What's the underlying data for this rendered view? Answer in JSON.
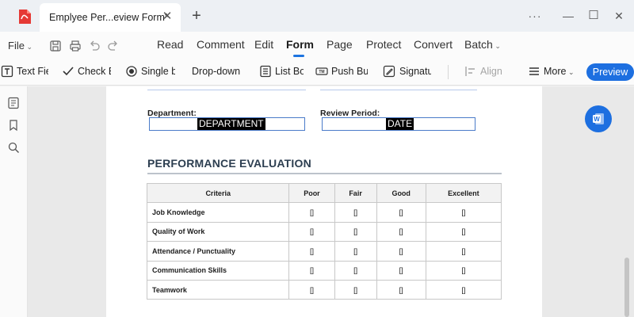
{
  "window": {
    "tab_title": "Emplyee Per...eview Form*",
    "tab_close_glyph": "✕",
    "new_tab_glyph": "+",
    "more_glyph": "···",
    "minimize_glyph": "—",
    "maximize_glyph": "☐",
    "close_glyph": "✕"
  },
  "menubar": {
    "file_label": "File",
    "items": [
      "Read",
      "Comment",
      "Edit",
      "Form",
      "Page",
      "Protect",
      "Convert",
      "Batch"
    ],
    "active_item": "Form"
  },
  "toolbar": {
    "text_field": "Text Fiel",
    "check_box": "Check Bo",
    "single_box": "Single bo",
    "dropdown": "Drop-down m",
    "list_box": "List Box",
    "push_button": "Push Butt",
    "signature": "Signatur",
    "align": "Align",
    "more": "More",
    "preview": "Preview"
  },
  "form": {
    "department_label": "Department:",
    "department_value": "DEPARTMENT",
    "review_period_label": "Review Period:",
    "review_period_value": "DATE",
    "section_title": "PERFORMANCE EVALUATION",
    "table": {
      "headers": [
        "Criteria",
        "Poor",
        "Fair",
        "Good",
        "Excellent"
      ],
      "rows": [
        [
          "Job Knowledge",
          "[]",
          "[]",
          "[]",
          "[]"
        ],
        [
          "Quality of Work",
          "[]",
          "[]",
          "[]",
          "[]"
        ],
        [
          "Attendance / Punctuality",
          "[]",
          "[]",
          "[]",
          "[]"
        ],
        [
          "Communication Skills",
          "[]",
          "[]",
          "[]",
          "[]"
        ],
        [
          "Teamwork",
          "[]",
          "[]",
          "[]",
          "[]"
        ]
      ]
    }
  },
  "colors": {
    "accent": "#1d6fe0",
    "brand": "#e53935"
  },
  "icons": [
    "app-logo-icon",
    "save-icon",
    "print-icon",
    "undo-icon",
    "redo-icon",
    "text-field-icon",
    "check-box-icon",
    "radio-icon",
    "list-box-icon",
    "push-button-icon",
    "signature-icon",
    "align-icon",
    "more-icon",
    "thumbnails-icon",
    "bookmark-icon",
    "search-icon",
    "word-convert-icon"
  ]
}
